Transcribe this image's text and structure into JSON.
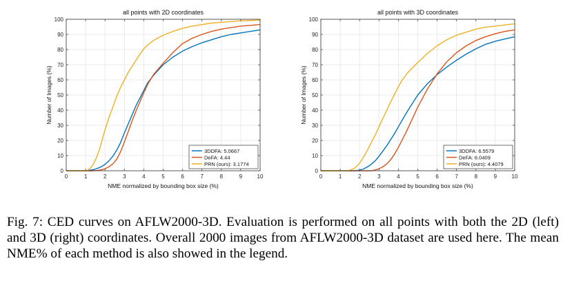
{
  "chart_data": [
    {
      "type": "line",
      "title": "all points with 2D coordinates",
      "xlabel": "NME normalized by bounding box size (%)",
      "ylabel": "Number of Images (%)",
      "xlim": [
        0,
        10
      ],
      "ylim": [
        0,
        100
      ],
      "xticks": [
        "0",
        "1",
        "2",
        "3",
        "4",
        "5",
        "6",
        "7",
        "8",
        "9",
        "10"
      ],
      "yticks": [
        "0",
        "10",
        "20",
        "30",
        "40",
        "50",
        "60",
        "70",
        "80",
        "90",
        "100"
      ],
      "grid": true,
      "legend_position": "bottom-right",
      "series": [
        {
          "name": "3DDFA: 5.0667",
          "color": "#0072bd",
          "x": [
            0,
            1,
            1.2,
            1.4,
            1.6,
            1.8,
            2,
            2.2,
            2.4,
            2.6,
            2.8,
            3,
            3.2,
            3.4,
            3.6,
            3.8,
            4,
            4.2,
            4.5,
            5,
            5.5,
            6,
            6.5,
            7,
            7.5,
            8,
            8.5,
            9,
            9.5,
            10
          ],
          "y": [
            0,
            0,
            0.3,
            0.7,
            1.5,
            2.6,
            4.2,
            6.5,
            9.5,
            13.5,
            18.5,
            25,
            31,
            37,
            43,
            48,
            53,
            58,
            63,
            70,
            75,
            79,
            82,
            84.5,
            86.5,
            88.5,
            90,
            91,
            92,
            93
          ]
        },
        {
          "name": "DeFA: 4.44",
          "color": "#d95319",
          "x": [
            0,
            1.4,
            1.6,
            1.8,
            2,
            2.2,
            2.4,
            2.6,
            2.8,
            3,
            3.2,
            3.4,
            3.6,
            3.8,
            4,
            4.2,
            4.5,
            5,
            5.5,
            6,
            6.5,
            7,
            7.5,
            8,
            8.5,
            9,
            9.5,
            10
          ],
          "y": [
            0,
            0,
            0.2,
            0.6,
            1.3,
            2.6,
            4.5,
            7.5,
            12.5,
            19,
            26,
            33,
            39.5,
            45.5,
            51.5,
            57,
            63.5,
            71,
            78,
            84,
            87.5,
            90,
            92,
            93.5,
            94.5,
            95.5,
            96,
            96.5
          ]
        },
        {
          "name": "PRN (ours): 3.1774",
          "color": "#edb120",
          "x": [
            0,
            1,
            1.1,
            1.2,
            1.3,
            1.4,
            1.5,
            1.6,
            1.7,
            1.8,
            1.9,
            2,
            2.2,
            2.4,
            2.6,
            2.8,
            3,
            3.2,
            3.4,
            3.6,
            3.8,
            4,
            4.2,
            4.5,
            5,
            5.5,
            6,
            6.5,
            7,
            7.5,
            8,
            8.5,
            9,
            9.5,
            10
          ],
          "y": [
            0,
            0,
            0.4,
            1.2,
            2.5,
            4.5,
            7,
            10,
            13.5,
            18,
            22.5,
            27,
            35,
            42,
            49,
            55,
            60,
            65,
            69,
            73,
            77,
            80.5,
            83,
            86,
            89.5,
            92,
            94,
            95.5,
            96.5,
            97.5,
            98,
            98.5,
            99,
            99.2,
            99.5
          ]
        }
      ]
    },
    {
      "type": "line",
      "title": "all points with 3D coordinates",
      "xlabel": "NME normalized by bounding box size (%)",
      "ylabel": "Number of Images (%)",
      "xlim": [
        0,
        10
      ],
      "ylim": [
        0,
        100
      ],
      "xticks": [
        "0",
        "1",
        "2",
        "3",
        "4",
        "5",
        "6",
        "7",
        "8",
        "9",
        "10"
      ],
      "yticks": [
        "0",
        "10",
        "20",
        "30",
        "40",
        "50",
        "60",
        "70",
        "80",
        "90",
        "100"
      ],
      "grid": true,
      "legend_position": "bottom-right",
      "series": [
        {
          "name": "3DDFA: 6.5579",
          "color": "#0072bd",
          "x": [
            0,
            1.8,
            2,
            2.2,
            2.4,
            2.6,
            2.8,
            3,
            3.2,
            3.4,
            3.6,
            3.8,
            4,
            4.2,
            4.5,
            5,
            5.5,
            6,
            6.5,
            7,
            7.5,
            8,
            8.5,
            9,
            9.5,
            10
          ],
          "y": [
            0,
            0,
            0.4,
            1.2,
            2.5,
            4.3,
            6.5,
            9.5,
            13,
            16.5,
            20.5,
            24.5,
            29,
            33.5,
            40,
            50,
            57.5,
            63.5,
            68.5,
            73,
            77,
            80.5,
            83.5,
            85.5,
            87,
            88.5
          ]
        },
        {
          "name": "DeFA: 6.0409",
          "color": "#d95319",
          "x": [
            0,
            2.6,
            2.8,
            3,
            3.2,
            3.4,
            3.6,
            3.8,
            4,
            4.2,
            4.4,
            4.6,
            4.8,
            5,
            5.5,
            6,
            6.5,
            7,
            7.5,
            8,
            8.5,
            9,
            9.5,
            10
          ],
          "y": [
            0,
            0,
            0.5,
            1.3,
            2.6,
            4.5,
            7.3,
            11,
            15.5,
            20.5,
            25.5,
            31,
            36.5,
            42,
            54,
            64,
            72,
            78,
            82.5,
            86,
            88.5,
            90.5,
            92,
            93
          ]
        },
        {
          "name": "PRN (ours): 4.4079",
          "color": "#edb120",
          "x": [
            0,
            1.4,
            1.6,
            1.8,
            2,
            2.2,
            2.4,
            2.6,
            2.8,
            3,
            3.2,
            3.4,
            3.6,
            3.8,
            4,
            4.2,
            4.5,
            5,
            5.5,
            6,
            6.5,
            7,
            7.5,
            8,
            8.5,
            9,
            9.5,
            10
          ],
          "y": [
            0,
            0,
            0.8,
            2.3,
            5,
            9,
            13.5,
            18.5,
            23.5,
            29,
            34.5,
            40,
            45.5,
            50.5,
            55.5,
            60,
            65,
            71.5,
            77.5,
            82.5,
            86.5,
            89.5,
            91.5,
            93.5,
            94.8,
            95.5,
            96.2,
            97
          ]
        }
      ]
    }
  ],
  "caption": "Fig. 7: CED curves on AFLW2000-3D. Evaluation is performed on all points with both the 2D (left) and 3D (right) coordinates. Overall 2000 images from AFLW2000-3D dataset are used here. The mean NME% of each method is also showed in the legend."
}
